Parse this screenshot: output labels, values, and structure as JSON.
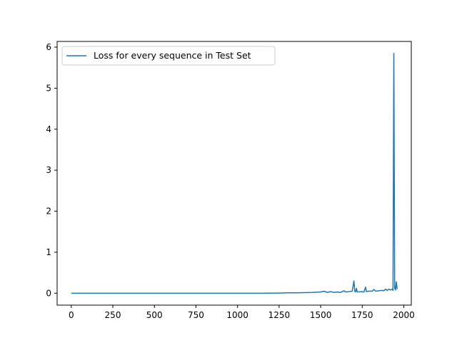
{
  "chart_data": {
    "type": "line",
    "xlim": [
      -85,
      2045
    ],
    "ylim": [
      -0.29,
      6.14
    ],
    "x_ticks": [
      0,
      250,
      500,
      750,
      1000,
      1250,
      1500,
      1750,
      2000
    ],
    "y_ticks": [
      0,
      1,
      2,
      3,
      4,
      5,
      6
    ],
    "x_tick_labels": [
      "0",
      "250",
      "500",
      "750",
      "1000",
      "1250",
      "1500",
      "1750",
      "2000"
    ],
    "y_tick_labels": [
      "0",
      "1",
      "2",
      "3",
      "4",
      "5",
      "6"
    ],
    "legend_position": "top-left",
    "grid": false,
    "series": [
      {
        "name": "Loss for every sequence in Test Set",
        "color": "#1f77b4",
        "points": [
          [
            0,
            0.0
          ],
          [
            200,
            0.0
          ],
          [
            400,
            0.0
          ],
          [
            600,
            0.0
          ],
          [
            800,
            0.0
          ],
          [
            1000,
            0.0
          ],
          [
            1150,
            0.0
          ],
          [
            1250,
            0.005
          ],
          [
            1300,
            0.01
          ],
          [
            1350,
            0.01
          ],
          [
            1400,
            0.015
          ],
          [
            1450,
            0.02
          ],
          [
            1500,
            0.03
          ],
          [
            1520,
            0.05
          ],
          [
            1540,
            0.02
          ],
          [
            1560,
            0.04
          ],
          [
            1580,
            0.02
          ],
          [
            1600,
            0.03
          ],
          [
            1620,
            0.02
          ],
          [
            1640,
            0.06
          ],
          [
            1650,
            0.03
          ],
          [
            1670,
            0.04
          ],
          [
            1690,
            0.05
          ],
          [
            1700,
            0.3
          ],
          [
            1705,
            0.05
          ],
          [
            1710,
            0.03
          ],
          [
            1715,
            0.12
          ],
          [
            1720,
            0.03
          ],
          [
            1740,
            0.04
          ],
          [
            1760,
            0.03
          ],
          [
            1770,
            0.15
          ],
          [
            1775,
            0.04
          ],
          [
            1790,
            0.05
          ],
          [
            1810,
            0.05
          ],
          [
            1820,
            0.09
          ],
          [
            1830,
            0.05
          ],
          [
            1850,
            0.06
          ],
          [
            1870,
            0.07
          ],
          [
            1880,
            0.06
          ],
          [
            1890,
            0.1
          ],
          [
            1900,
            0.07
          ],
          [
            1910,
            0.1
          ],
          [
            1920,
            0.08
          ],
          [
            1930,
            0.1
          ],
          [
            1935,
            0.07
          ],
          [
            1940,
            5.85
          ],
          [
            1945,
            0.12
          ],
          [
            1950,
            0.08
          ],
          [
            1955,
            0.28
          ],
          [
            1960,
            0.1
          ]
        ]
      }
    ]
  }
}
